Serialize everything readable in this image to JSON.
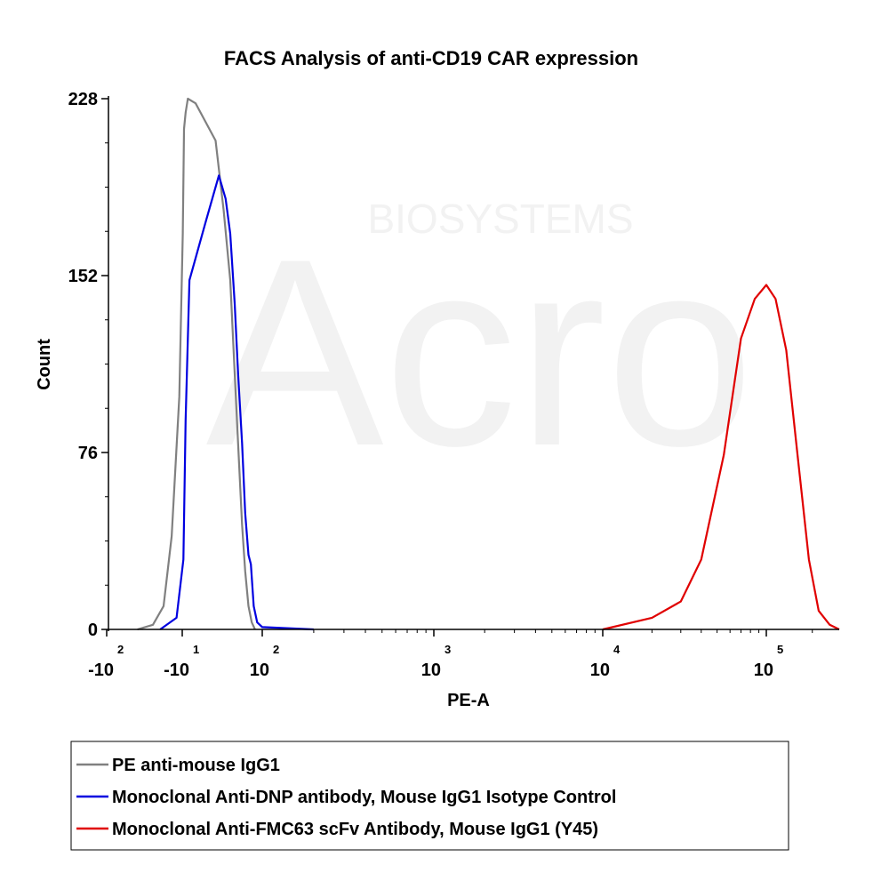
{
  "chart_data": {
    "type": "line",
    "title": "FACS Analysis of anti-CD19 CAR expression",
    "xlabel": "PE-A",
    "ylabel": "Count",
    "x_scale": "biexponential",
    "y_ticks": [
      0,
      76,
      152,
      228
    ],
    "ylim": [
      0,
      228
    ],
    "x_tick_labels": [
      {
        "base": "-10",
        "exp": "2",
        "value": -100
      },
      {
        "base": "-10",
        "exp": "1",
        "value": -10
      },
      {
        "base": "10",
        "exp": "2",
        "value": 100
      },
      {
        "base": "10",
        "exp": "3",
        "value": 1000
      },
      {
        "base": "10",
        "exp": "4",
        "value": 10000
      },
      {
        "base": "10",
        "exp": "5",
        "value": 100000
      }
    ],
    "legend_placement": "below",
    "series": [
      {
        "name": "PE anti-mouse IgG1",
        "color": "#808080",
        "points": [
          [
            -40,
            0
          ],
          [
            -25,
            2
          ],
          [
            -18,
            10
          ],
          [
            -14,
            40
          ],
          [
            -11,
            100
          ],
          [
            -9,
            170
          ],
          [
            -7,
            215
          ],
          [
            -5,
            222
          ],
          [
            -3,
            228
          ],
          [
            0,
            226
          ],
          [
            3,
            210
          ],
          [
            6,
            180
          ],
          [
            10,
            150
          ],
          [
            14,
            110
          ],
          [
            18,
            80
          ],
          [
            24,
            45
          ],
          [
            30,
            25
          ],
          [
            38,
            10
          ],
          [
            48,
            3
          ],
          [
            60,
            0
          ]
        ]
      },
      {
        "name": "Monoclonal Anti-DNP antibody, Mouse IgG1 Isotype Control",
        "color": "#0000e0",
        "points": [
          [
            -20,
            0
          ],
          [
            -12,
            5
          ],
          [
            -8,
            30
          ],
          [
            -5,
            90
          ],
          [
            -2,
            150
          ],
          [
            1,
            175
          ],
          [
            4,
            195
          ],
          [
            7,
            185
          ],
          [
            10,
            170
          ],
          [
            14,
            140
          ],
          [
            18,
            110
          ],
          [
            24,
            80
          ],
          [
            30,
            50
          ],
          [
            38,
            32
          ],
          [
            45,
            28
          ],
          [
            55,
            10
          ],
          [
            70,
            3
          ],
          [
            100,
            1
          ],
          [
            200,
            0
          ]
        ]
      },
      {
        "name": "Monoclonal Anti-FMC63 scFv Antibody, Mouse IgG1 (Y45)",
        "color": "#e00000",
        "points": [
          [
            10000,
            0
          ],
          [
            20000,
            5
          ],
          [
            30000,
            12
          ],
          [
            40000,
            30
          ],
          [
            55000,
            75
          ],
          [
            70000,
            125
          ],
          [
            85000,
            142
          ],
          [
            100000,
            148
          ],
          [
            115000,
            142
          ],
          [
            135000,
            120
          ],
          [
            160000,
            75
          ],
          [
            190000,
            30
          ],
          [
            220000,
            8
          ],
          [
            260000,
            2
          ],
          [
            300000,
            0
          ]
        ]
      }
    ]
  },
  "watermark": {
    "brand": "Acro",
    "subtitle": "BIOSYSTEMS"
  }
}
